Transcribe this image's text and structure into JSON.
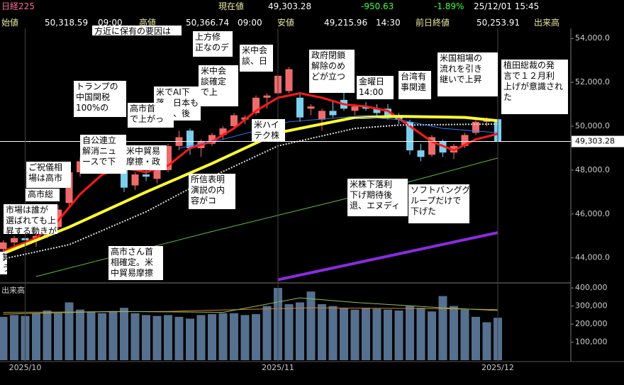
{
  "header": {
    "symbol": "日経225",
    "current_label": "現在値",
    "current": "49,303.28",
    "change": "-950.63",
    "change_pct": "-1.89%",
    "datetime": "25/12/01  15:45",
    "open_label": "始値",
    "open": "50,318.59",
    "open_time": "09:00",
    "high_label": "高値",
    "high": "50,366.74",
    "high_time": "09:00",
    "low_label": "安値",
    "low": "49,215.96",
    "low_time": "14:30",
    "prev_label": "前日終値",
    "prev_close": "50,253.91",
    "volume_label": "出来高"
  },
  "chart_data": [
    {
      "type": "candlestick",
      "ylim": [
        42890,
        54460
      ],
      "yticks": [
        {
          "value": 44000,
          "label": "44,000.0"
        },
        {
          "value": 46000,
          "label": "46,000.0"
        },
        {
          "value": 48000,
          "label": "48,000.0"
        },
        {
          "value": 50000,
          "label": "50,000.0"
        },
        {
          "value": 52000,
          "label": "52,000.0"
        },
        {
          "value": 54000,
          "label": "54,000.0"
        }
      ],
      "up_color": "#ef6b6b",
      "down_color": "#7ccfef",
      "open": [
        44400,
        44700,
        44900,
        44800,
        45000,
        45400,
        46500,
        47900,
        48400,
        48300,
        48600,
        48200,
        47300,
        47800,
        47600,
        48000,
        49100,
        49800,
        49000,
        49200,
        49600,
        50000,
        50300,
        50600,
        51300,
        51500,
        51600,
        51300,
        50800,
        50300,
        50700,
        51200,
        50700,
        50900,
        50800,
        50800,
        50400,
        50200,
        48900,
        48700,
        49300,
        48800,
        49100,
        49700,
        50200,
        50318.59
      ],
      "high": [
        44800,
        45000,
        45100,
        45200,
        45500,
        46400,
        48200,
        48600,
        48700,
        48800,
        48900,
        48300,
        47900,
        48000,
        48100,
        49200,
        49800,
        49900,
        49400,
        49700,
        50000,
        50600,
        50500,
        51400,
        51500,
        52400,
        52700,
        51500,
        51000,
        50800,
        51100,
        51600,
        51000,
        51100,
        51000,
        51000,
        50600,
        50300,
        49200,
        49600,
        49400,
        49200,
        49700,
        50300,
        50400,
        50366.74
      ],
      "low": [
        44200,
        44500,
        44600,
        44500,
        44900,
        45300,
        46300,
        47700,
        48100,
        48000,
        48200,
        47000,
        47100,
        47500,
        47400,
        47900,
        48900,
        48700,
        48600,
        49100,
        49400,
        49900,
        50100,
        50500,
        50800,
        51300,
        51500,
        50200,
        50500,
        49800,
        50400,
        50700,
        50500,
        50700,
        50400,
        50300,
        50100,
        48700,
        48400,
        48600,
        48600,
        48500,
        49000,
        49600,
        50000,
        49215.96
      ],
      "close": [
        44700,
        44900,
        44800,
        45000,
        45400,
        46200,
        47900,
        48400,
        48300,
        48600,
        48500,
        47200,
        47800,
        47700,
        48000,
        49100,
        49500,
        49000,
        49300,
        49600,
        49900,
        50500,
        50400,
        51300,
        51400,
        52300,
        52600,
        50400,
        50900,
        50700,
        50500,
        50800,
        50900,
        50800,
        50600,
        50400,
        50300,
        48900,
        48600,
        49500,
        48800,
        49100,
        49600,
        50200,
        50250,
        49303.28
      ],
      "lines": [
        {
          "color": "#ff1a1a",
          "width": 3,
          "x": [
            0,
            3,
            5,
            7,
            9,
            11,
            13,
            15,
            17,
            19,
            21,
            23,
            25,
            27,
            29,
            31,
            33,
            35,
            37,
            39,
            41,
            43,
            45
          ],
          "values": [
            44300,
            44900,
            45700,
            46900,
            47800,
            48100,
            47900,
            48200,
            49000,
            49300,
            49900,
            50700,
            51300,
            51500,
            51300,
            51000,
            50900,
            50700,
            50000,
            49300,
            48900,
            49400,
            49650
          ]
        },
        {
          "color": "#ffff33",
          "width": 4,
          "x": [
            0,
            6,
            13,
            19,
            25,
            32,
            36,
            42,
            45
          ],
          "values": [
            44200,
            45400,
            47000,
            48300,
            49700,
            50400,
            50450,
            50400,
            50250
          ]
        },
        {
          "color": "#dddddd",
          "width": 2,
          "dotted": true,
          "x": [
            0,
            6,
            13,
            19,
            25,
            32,
            36,
            45
          ],
          "values": [
            43950,
            44600,
            46100,
            47700,
            49100,
            49900,
            50050,
            50100
          ]
        },
        {
          "color": "#3a78ff",
          "width": 1,
          "x": [
            16,
            20,
            26,
            32,
            36,
            40,
            45
          ],
          "values": [
            49000,
            49400,
            50200,
            50450,
            50300,
            49900,
            49700
          ]
        },
        {
          "color": "#5cc23a",
          "width": 1,
          "x": [
            3,
            19,
            32,
            45
          ],
          "values": [
            43150,
            45200,
            46800,
            48550
          ]
        },
        {
          "color": "#8a2be2",
          "width": 4,
          "x": [
            25,
            45
          ],
          "values": [
            43000,
            45150
          ]
        }
      ],
      "last_price": {
        "value": 49303.28,
        "label": "49,303.28"
      }
    },
    {
      "type": "bar",
      "title": "出来高",
      "categories": [
        null,
        null,
        "2025/10",
        null,
        null,
        null,
        null,
        null,
        null,
        null,
        null,
        null,
        null,
        null,
        null,
        null,
        null,
        null,
        null,
        null,
        null,
        null,
        null,
        null,
        null,
        "2025/11",
        null,
        null,
        null,
        null,
        null,
        null,
        null,
        null,
        null,
        null,
        null,
        null,
        null,
        null,
        null,
        null,
        null,
        null,
        null,
        "2025/12"
      ],
      "values": [
        240000,
        250000,
        245000,
        260000,
        275000,
        260000,
        320000,
        280000,
        270000,
        260000,
        270000,
        290000,
        260000,
        250000,
        245000,
        250000,
        240000,
        230000,
        250000,
        255000,
        260000,
        260000,
        250000,
        255000,
        300000,
        400000,
        310000,
        320000,
        380000,
        310000,
        300000,
        290000,
        280000,
        290000,
        285000,
        280000,
        275000,
        300000,
        290000,
        270000,
        355000,
        300000,
        280000,
        240000,
        210000,
        235000
      ],
      "color": "#56708f",
      "ylim": [
        0,
        424000
      ],
      "yticks": [
        {
          "value": 100000,
          "label": "100,000"
        },
        {
          "value": 200000,
          "label": "200,000"
        },
        {
          "value": 300000,
          "label": "300,000"
        },
        {
          "value": 400000,
          "label": "400,000"
        }
      ],
      "lines": [
        {
          "color": "#d08030",
          "width": 1,
          "x": [
            0,
            15,
            28,
            40,
            45
          ],
          "values": [
            265000,
            270000,
            290000,
            285000,
            280000
          ]
        },
        {
          "color": "#90c050",
          "width": 1,
          "x": [
            0,
            10,
            20,
            27,
            32,
            40,
            45
          ],
          "values": [
            255000,
            270000,
            265000,
            345000,
            320000,
            290000,
            275000
          ]
        }
      ]
    }
  ],
  "annotations": [
    {
      "lines": [
        "方近に保有の要因は"
      ]
    },
    {
      "lines": [
        "上方修",
        "正なのデ"
      ]
    },
    {
      "lines": [
        "米中会",
        "談、日"
      ]
    },
    {
      "lines": [
        "政府閉鎖",
        "解除のめ",
        "どが立つ"
      ]
    },
    {
      "lines": [
        "米国相場の",
        "流れを引き",
        "継いで上昇"
      ]
    },
    {
      "lines": [
        "植田総裁の発",
        "言で１２月利",
        "上げが意識され",
        "た"
      ]
    },
    {
      "lines": [
        "トランプの",
        "中国関税",
        "100%の"
      ]
    },
    {
      "lines": [
        "米でAI下",
        "落、日本も",
        "下落、後"
      ]
    },
    {
      "lines": [
        "米中会",
        "談確定",
        "で上"
      ]
    },
    {
      "lines": [
        "金曜日",
        "14:00"
      ]
    },
    {
      "lines": [
        "台湾有",
        "事関連"
      ]
    },
    {
      "lines": [
        "高市首",
        "で上がっ"
      ]
    },
    {
      "lines": [
        "米ハイ",
        "テク株"
      ]
    },
    {
      "lines": [
        "自公連立",
        "解消ニュ",
        "ースで下"
      ]
    },
    {
      "lines": [
        "米中貿易",
        "摩擦・政"
      ]
    },
    {
      "lines": [
        "ご祝儀相",
        "場は高市"
      ]
    },
    {
      "lines": [
        "高市総"
      ]
    },
    {
      "lines": [
        "市場は誰が",
        "選ばれても上",
        "昇する動きが"
      ]
    },
    {
      "lines": [
        "所信表明",
        "演説の内",
        "容がコ"
      ]
    },
    {
      "lines": [
        "米株下落利",
        "下げ期待後",
        "退、エヌディ"
      ]
    },
    {
      "lines": [
        "ソフトバンググ",
        "ループだけで",
        "下げた"
      ]
    },
    {
      "lines": [
        "高市さん首",
        "相確定。米",
        "中貿易摩擦"
      ]
    },
    {
      "lines": [
        "算",
        "う"
      ]
    }
  ]
}
